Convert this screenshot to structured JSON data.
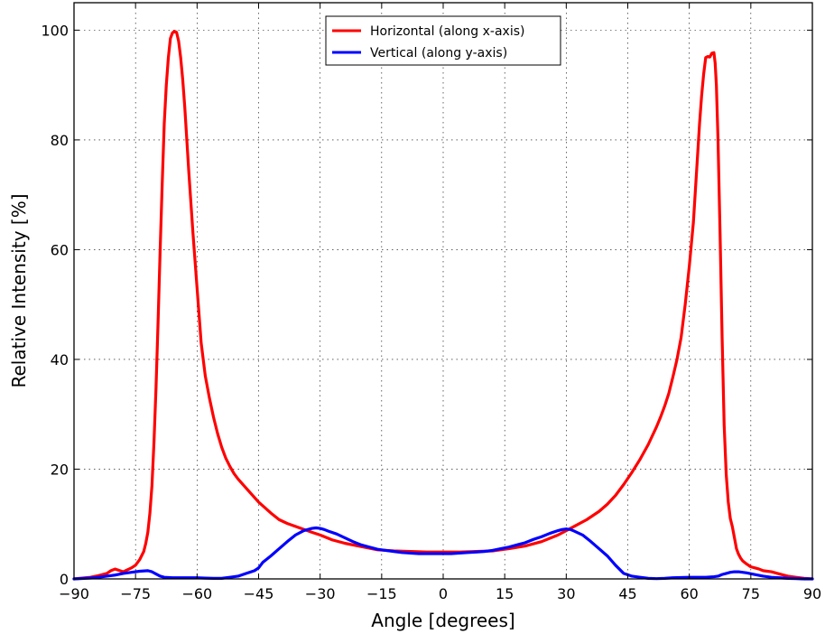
{
  "chart_data": {
    "type": "line",
    "title": "",
    "xlabel": "Angle [degrees]",
    "ylabel": "Relative Intensity [%]",
    "xlim": [
      -90,
      90
    ],
    "ylim": [
      0,
      105
    ],
    "xticks": [
      -90,
      -75,
      -60,
      -45,
      -30,
      -15,
      0,
      15,
      30,
      45,
      60,
      75,
      90
    ],
    "yticks": [
      0,
      20,
      40,
      60,
      80,
      100
    ],
    "grid": true,
    "legend_position": "top-center",
    "series": [
      {
        "name": "Horizontal (along x-axis)",
        "color": "#ff0000",
        "x": [
          -90,
          -86,
          -84,
          -82,
          -81,
          -80,
          -78,
          -76,
          -75,
          -74,
          -73,
          -72.5,
          -72,
          -71.5,
          -71,
          -70.5,
          -70,
          -69.5,
          -69,
          -68.5,
          -68,
          -67.5,
          -67,
          -66.5,
          -66,
          -65.5,
          -65,
          -64.5,
          -64,
          -63.5,
          -63,
          -62.5,
          -62,
          -61,
          -60,
          -59,
          -58,
          -57,
          -56,
          -55,
          -54,
          -53,
          -52,
          -51,
          -50,
          -48,
          -45,
          -42,
          -40,
          -38,
          -35,
          -32,
          -30,
          -27,
          -24,
          -20,
          -16,
          -12,
          -8,
          -4,
          0,
          4,
          8,
          12,
          16,
          20,
          24,
          28,
          30,
          32,
          35,
          38,
          40,
          42,
          44,
          46,
          48,
          50,
          52,
          53,
          54,
          55,
          56,
          57,
          58,
          59,
          60,
          60.5,
          61,
          61.5,
          62,
          62.5,
          63,
          63.5,
          64,
          64.5,
          65,
          65.5,
          66,
          66.3,
          66.6,
          67,
          67.5,
          68,
          68.5,
          69,
          69.5,
          70,
          70.5,
          71,
          71.5,
          72,
          72.5,
          73,
          74,
          75,
          76,
          77,
          78,
          79,
          80,
          81,
          82,
          84,
          86,
          88,
          90
        ],
        "y": [
          0,
          0.3,
          0.6,
          1.0,
          1.5,
          1.8,
          1.3,
          2.0,
          2.5,
          3.5,
          5.0,
          6.5,
          8.5,
          12,
          17,
          25,
          35,
          47,
          60,
          72,
          83,
          90,
          95,
          98.5,
          99.5,
          99.8,
          99.6,
          98,
          95,
          91,
          86,
          80,
          74,
          63,
          53,
          43,
          37,
          33,
          29.5,
          26.5,
          24,
          22,
          20.5,
          19.2,
          18.2,
          16.5,
          14,
          12,
          10.8,
          10.1,
          9.3,
          8.5,
          8.0,
          7.1,
          6.5,
          5.9,
          5.3,
          5.1,
          5.0,
          4.9,
          4.9,
          4.9,
          5.0,
          5.1,
          5.5,
          6.0,
          6.8,
          8.0,
          8.8,
          9.6,
          10.8,
          12.3,
          13.6,
          15.2,
          17.2,
          19.4,
          21.8,
          24.5,
          27.7,
          29.5,
          31.5,
          33.8,
          36.8,
          40,
          44,
          50,
          57,
          61,
          65,
          71,
          77,
          83,
          88,
          92,
          95,
          95.2,
          95.1,
          95.8,
          95.9,
          94,
          90,
          80,
          63,
          44,
          28,
          19,
          14,
          11,
          9.5,
          7.5,
          5.5,
          4.5,
          3.8,
          3.3,
          2.7,
          2.2,
          2.0,
          1.8,
          1.5,
          1.4,
          1.3,
          1.1,
          0.9,
          0.5,
          0.3,
          0.1,
          0
        ]
      },
      {
        "name": "Vertical (along y-axis)",
        "color": "#0000ff",
        "x": [
          -90,
          -85,
          -82,
          -80,
          -78,
          -76,
          -74,
          -72,
          -71,
          -70,
          -69,
          -68,
          -66,
          -64,
          -62,
          -60,
          -58,
          -56,
          -54,
          -52,
          -50,
          -48,
          -46,
          -45,
          -44,
          -42,
          -40,
          -38,
          -36,
          -34,
          -32,
          -31,
          -30,
          -29,
          -28,
          -26,
          -24,
          -22,
          -20,
          -18,
          -16,
          -14,
          -12,
          -10,
          -8,
          -6,
          -4,
          -2,
          0,
          2,
          4,
          6,
          8,
          10,
          12,
          14,
          16,
          18,
          20,
          22,
          24,
          26,
          28,
          29,
          30,
          31,
          32,
          34,
          36,
          38,
          40,
          42,
          44,
          46,
          48,
          50,
          52,
          54,
          56,
          58,
          60,
          62,
          64,
          66,
          67,
          68,
          69,
          70,
          71,
          72,
          73,
          74,
          76,
          78,
          80,
          82,
          84,
          86,
          88,
          90
        ],
        "y": [
          0,
          0.2,
          0.5,
          0.7,
          1.0,
          1.2,
          1.4,
          1.5,
          1.3,
          0.9,
          0.5,
          0.3,
          0.2,
          0.2,
          0.2,
          0.2,
          0.15,
          0.1,
          0.1,
          0.3,
          0.5,
          1.0,
          1.5,
          2.0,
          3.0,
          4.2,
          5.5,
          6.8,
          8.0,
          8.8,
          9.2,
          9.3,
          9.2,
          9.0,
          8.7,
          8.2,
          7.5,
          6.8,
          6.2,
          5.8,
          5.4,
          5.2,
          5.0,
          4.8,
          4.7,
          4.6,
          4.6,
          4.6,
          4.6,
          4.6,
          4.7,
          4.8,
          4.9,
          5.0,
          5.2,
          5.5,
          5.8,
          6.2,
          6.6,
          7.2,
          7.7,
          8.3,
          8.8,
          9.0,
          9.1,
          9.0,
          8.7,
          8.0,
          6.8,
          5.5,
          4.2,
          2.5,
          1.0,
          0.5,
          0.3,
          0.1,
          0.05,
          0.1,
          0.2,
          0.25,
          0.3,
          0.3,
          0.3,
          0.4,
          0.5,
          0.8,
          1.0,
          1.2,
          1.3,
          1.3,
          1.2,
          1.1,
          0.8,
          0.5,
          0.3,
          0.2,
          0.1,
          0.05,
          0,
          0
        ]
      }
    ]
  }
}
